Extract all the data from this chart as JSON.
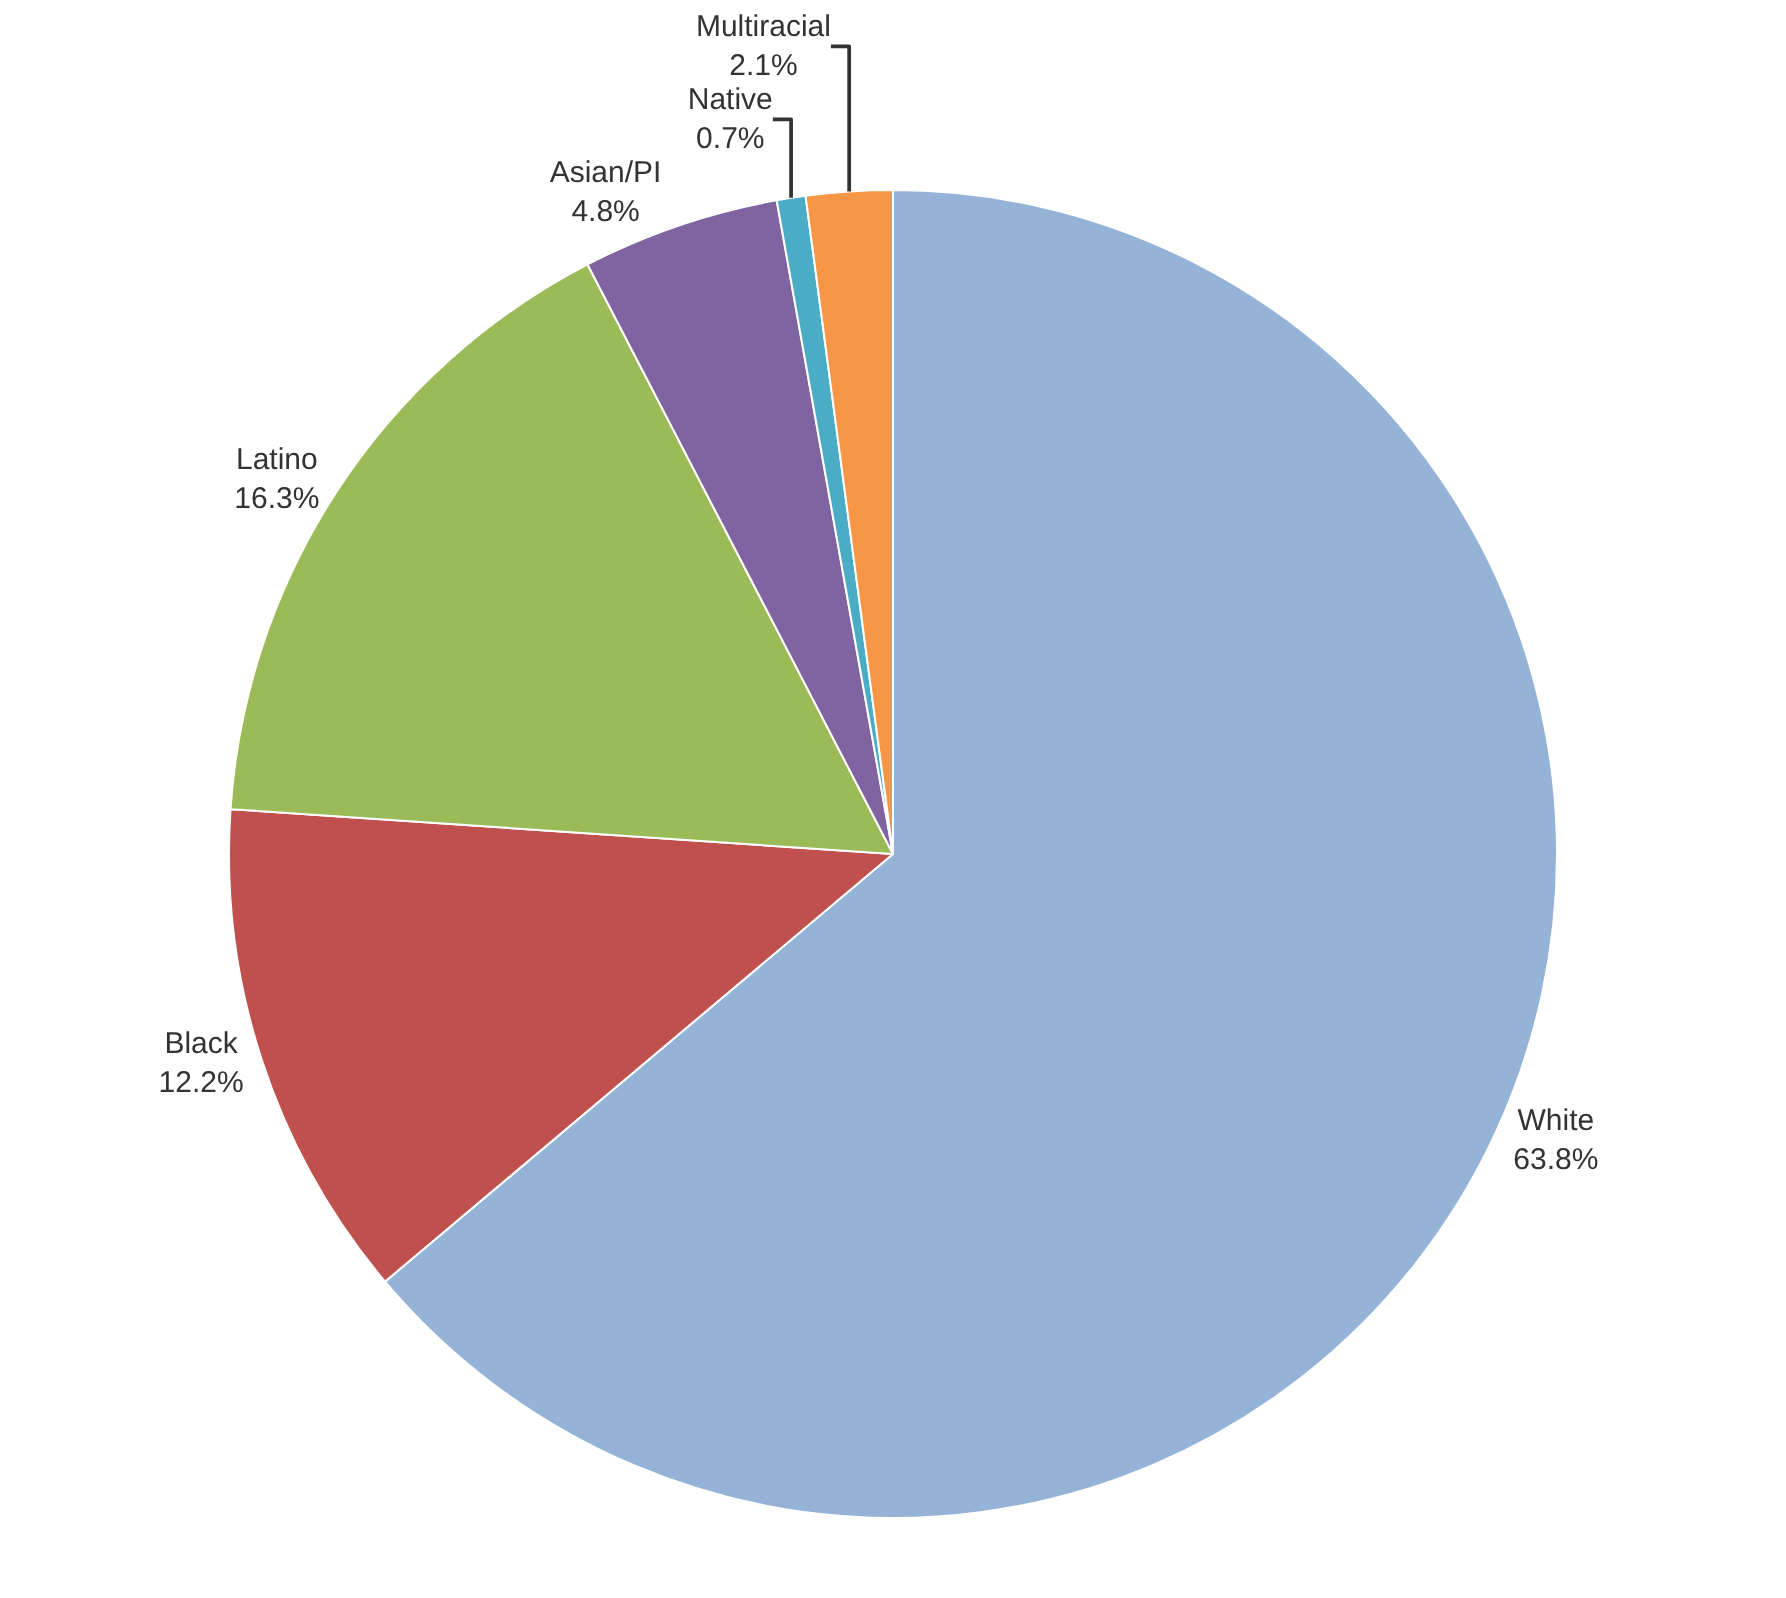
{
  "chart_data": {
    "type": "pie",
    "categories": [
      "White",
      "Black",
      "Latino",
      "Asian/PI",
      "Native",
      "Multiracial"
    ],
    "values": [
      63.8,
      12.2,
      16.3,
      4.8,
      0.7,
      2.1
    ],
    "value_labels": [
      "63.8%",
      "12.2%",
      "16.3%",
      "4.8%",
      "0.7%",
      "2.1%"
    ],
    "colors": [
      "#95b3d7",
      "#c0504d",
      "#9bbb59",
      "#8064a2",
      "#4bacc6",
      "#f79646"
    ],
    "legend": false
  }
}
